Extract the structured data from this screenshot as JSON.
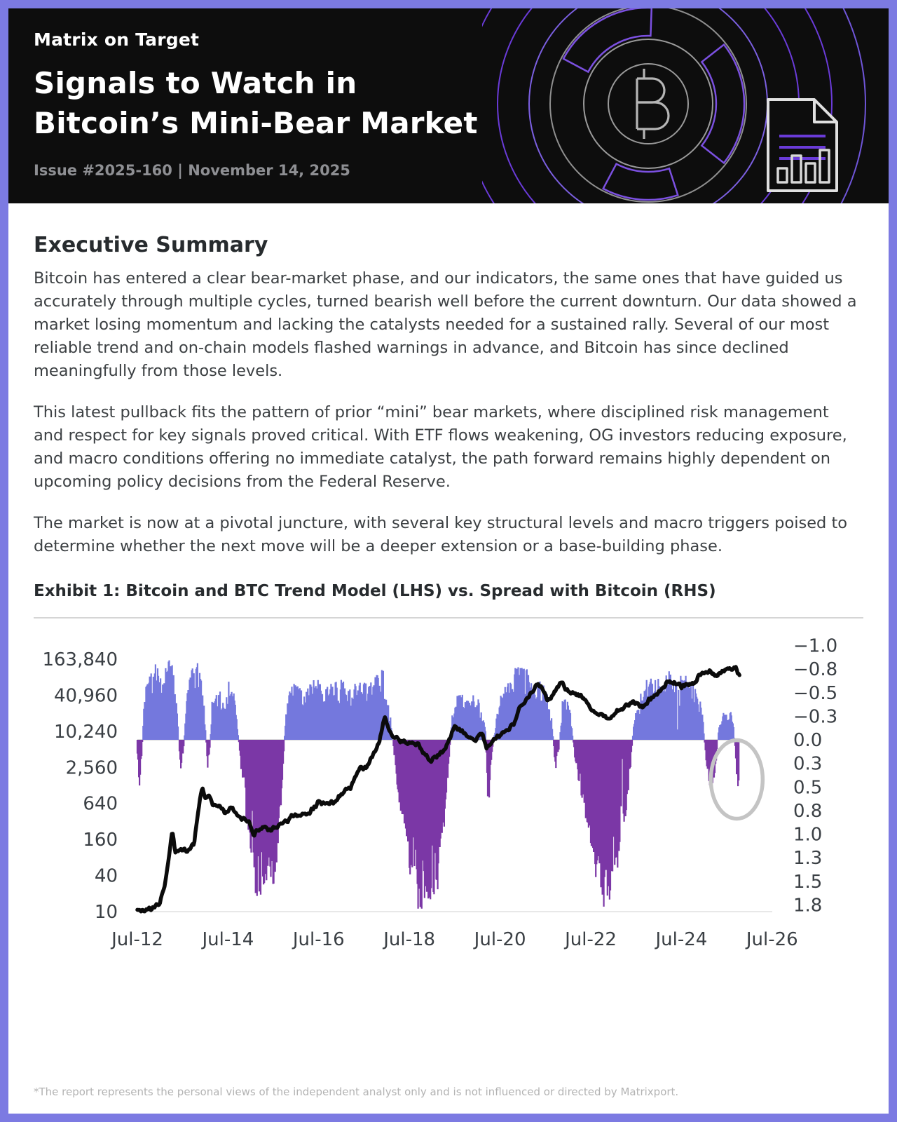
{
  "page": {
    "border_color": "#7c7ae2",
    "background": "#ffffff",
    "header_background": "#0d0d0d"
  },
  "header": {
    "kicker": "Matrix on Target",
    "title_lines": [
      "Signals to Watch in",
      "Bitcoin’s Mini-Bear Market"
    ],
    "issue_line": "Issue #2025-160 | November 14, 2025",
    "icons": [
      "bitcoin-rings-graphic",
      "report-document-icon"
    ]
  },
  "summary": {
    "heading": "Executive Summary",
    "paragraphs": [
      "Bitcoin has entered a clear bear-market phase, and our indicators, the same ones that have guided us accurately through multiple cycles, turned bearish well before the current downturn. Our data showed a market losing momentum and lacking the catalysts needed for a sustained rally. Several of our most reliable trend and on-chain models flashed warnings in advance, and Bitcoin has since declined meaningfully from those levels.",
      "This latest pullback fits the pattern of prior “mini” bear markets, where disciplined risk management and respect for key signals proved critical. With ETF flows weakening, OG investors reducing exposure, and macro conditions offering no immediate catalyst, the path forward remains highly dependent on upcoming policy decisions from the Federal Reserve.",
      "The market is now at a pivotal juncture, with several key structural levels and macro triggers poised to determine whether the next move will be a deeper extension or a base-building phase."
    ]
  },
  "exhibit": {
    "heading": "Exhibit 1: Bitcoin and BTC Trend Model (LHS) vs. Spread with Bitcoin (RHS)"
  },
  "footer": {
    "disclaimer": "*The report represents the personal views of the independent analyst only and is not influenced or directed by Matrixport."
  },
  "chart_data": {
    "type": "combo",
    "title": "Bitcoin and BTC Trend Model (LHS) vs. Spread with Bitcoin (RHS)",
    "grid": false,
    "legend": "none",
    "colors": {
      "btc_line": "#0b0b0b",
      "spread_negative": "#7478dd",
      "spread_positive": "#7b37a6",
      "zero_line": "#d9d9d9",
      "baseline": "#e8e8e8",
      "annotation_circle": "#c4c4c4",
      "tick_text": "#3a3f44"
    },
    "x_axis": {
      "tick_labels": [
        "Jul-12",
        "Jul-14",
        "Jul-16",
        "Jul-18",
        "Jul-20",
        "Jul-22",
        "Jul-24",
        "Jul-26"
      ],
      "start_year": 2012.5,
      "end_year": 2026.5,
      "years_per_tick": 2
    },
    "left_axis": {
      "scale": "log4",
      "min": 10,
      "max": 163840,
      "tick_labels": [
        "163,840",
        "40,960",
        "10,240",
        "2,560",
        "640",
        "160",
        "40",
        "10"
      ]
    },
    "right_axis": {
      "inverted": true,
      "min": -1.0,
      "max": 1.75,
      "step": 0.25,
      "tick_labels": [
        "−1.0",
        "−0.8",
        "−0.5",
        "−0.3",
        "0.0",
        "0.3",
        "0.5",
        "0.8",
        "1.0",
        "1.3",
        "1.5",
        "1.8"
      ]
    },
    "series": [
      {
        "name": "Bitcoin price (LHS, USD, log scale)",
        "type": "line",
        "axis": "left",
        "points": [
          [
            2012.5,
            10.5
          ],
          [
            2012.6,
            11
          ],
          [
            2012.75,
            10.8
          ],
          [
            2012.9,
            12.5
          ],
          [
            2013.0,
            14
          ],
          [
            2013.1,
            25
          ],
          [
            2013.2,
            90
          ],
          [
            2013.27,
            230
          ],
          [
            2013.33,
            95
          ],
          [
            2013.45,
            110
          ],
          [
            2013.6,
            105
          ],
          [
            2013.75,
            140
          ],
          [
            2013.87,
            700
          ],
          [
            2013.93,
            1150
          ],
          [
            2014.0,
            780
          ],
          [
            2014.07,
            920
          ],
          [
            2014.15,
            630
          ],
          [
            2014.3,
            590
          ],
          [
            2014.45,
            450
          ],
          [
            2014.6,
            560
          ],
          [
            2014.75,
            380
          ],
          [
            2014.95,
            330
          ],
          [
            2015.05,
            185
          ],
          [
            2015.15,
            230
          ],
          [
            2015.3,
            255
          ],
          [
            2015.45,
            235
          ],
          [
            2015.6,
            265
          ],
          [
            2015.8,
            320
          ],
          [
            2015.95,
            420
          ],
          [
            2016.1,
            400
          ],
          [
            2016.3,
            450
          ],
          [
            2016.5,
            670
          ],
          [
            2016.7,
            630
          ],
          [
            2016.9,
            720
          ],
          [
            2017.05,
            1050
          ],
          [
            2017.2,
            1200
          ],
          [
            2017.4,
            2400
          ],
          [
            2017.55,
            2600
          ],
          [
            2017.7,
            4300
          ],
          [
            2017.85,
            7200
          ],
          [
            2017.95,
            19000
          ],
          [
            2018.05,
            10500
          ],
          [
            2018.15,
            8500
          ],
          [
            2018.3,
            7000
          ],
          [
            2018.5,
            6500
          ],
          [
            2018.7,
            6300
          ],
          [
            2018.85,
            4000
          ],
          [
            2018.95,
            3300
          ],
          [
            2019.1,
            3800
          ],
          [
            2019.3,
            5300
          ],
          [
            2019.5,
            12800
          ],
          [
            2019.65,
            10200
          ],
          [
            2019.8,
            8300
          ],
          [
            2019.95,
            7200
          ],
          [
            2020.1,
            9200
          ],
          [
            2020.2,
            5500
          ],
          [
            2020.35,
            7000
          ],
          [
            2020.5,
            9200
          ],
          [
            2020.65,
            11000
          ],
          [
            2020.8,
            13500
          ],
          [
            2020.95,
            27000
          ],
          [
            2021.1,
            36000
          ],
          [
            2021.3,
            61000
          ],
          [
            2021.45,
            51000
          ],
          [
            2021.55,
            32000
          ],
          [
            2021.7,
            46000
          ],
          [
            2021.85,
            66000
          ],
          [
            2022.0,
            47000
          ],
          [
            2022.15,
            42000
          ],
          [
            2022.3,
            39000
          ],
          [
            2022.45,
            29000
          ],
          [
            2022.6,
            20500
          ],
          [
            2022.75,
            19500
          ],
          [
            2022.9,
            16200
          ],
          [
            2023.05,
            21000
          ],
          [
            2023.2,
            25000
          ],
          [
            2023.35,
            29500
          ],
          [
            2023.5,
            30200
          ],
          [
            2023.65,
            26500
          ],
          [
            2023.8,
            34500
          ],
          [
            2023.95,
            42000
          ],
          [
            2024.1,
            52000
          ],
          [
            2024.2,
            68000
          ],
          [
            2024.35,
            64000
          ],
          [
            2024.5,
            58000
          ],
          [
            2024.65,
            61000
          ],
          [
            2024.8,
            66000
          ],
          [
            2024.95,
            99000
          ],
          [
            2025.05,
            104000
          ],
          [
            2025.15,
            97000
          ],
          [
            2025.25,
            82000
          ],
          [
            2025.35,
            95000
          ],
          [
            2025.45,
            108000
          ],
          [
            2025.55,
            117000
          ],
          [
            2025.62,
            112000
          ],
          [
            2025.7,
            119000
          ],
          [
            2025.78,
            84000
          ]
        ]
      },
      {
        "name": "Spread with Bitcoin (RHS)",
        "type": "spike-area",
        "axis": "right",
        "points": [
          [
            2012.5,
            0.15
          ],
          [
            2012.54,
            0.6
          ],
          [
            2012.6,
            0.2
          ],
          [
            2012.65,
            -0.5
          ],
          [
            2012.75,
            -0.7
          ],
          [
            2012.9,
            -0.8
          ],
          [
            2013.05,
            -0.6
          ],
          [
            2013.2,
            -0.85
          ],
          [
            2013.3,
            -0.7
          ],
          [
            2013.38,
            -0.3
          ],
          [
            2013.45,
            0.35
          ],
          [
            2013.52,
            0.1
          ],
          [
            2013.6,
            -0.5
          ],
          [
            2013.7,
            -0.8
          ],
          [
            2013.85,
            -0.85
          ],
          [
            2013.95,
            -0.55
          ],
          [
            2014.0,
            -0.15
          ],
          [
            2014.05,
            0.3
          ],
          [
            2014.1,
            0.1
          ],
          [
            2014.15,
            -0.45
          ],
          [
            2014.3,
            -0.5
          ],
          [
            2014.45,
            -0.4
          ],
          [
            2014.55,
            -0.75
          ],
          [
            2014.65,
            -0.45
          ],
          [
            2014.72,
            -0.1
          ],
          [
            2014.8,
            0.4
          ],
          [
            2014.9,
            0.8
          ],
          [
            2015.0,
            1.2
          ],
          [
            2015.1,
            1.75
          ],
          [
            2015.3,
            1.8
          ],
          [
            2015.5,
            1.7
          ],
          [
            2015.62,
            1.1
          ],
          [
            2015.7,
            0.5
          ],
          [
            2015.76,
            -0.2
          ],
          [
            2015.85,
            -0.55
          ],
          [
            2016.0,
            -0.6
          ],
          [
            2016.2,
            -0.5
          ],
          [
            2016.4,
            -0.65
          ],
          [
            2016.6,
            -0.55
          ],
          [
            2016.8,
            -0.6
          ],
          [
            2017.0,
            -0.65
          ],
          [
            2017.2,
            -0.55
          ],
          [
            2017.4,
            -0.65
          ],
          [
            2017.6,
            -0.6
          ],
          [
            2017.8,
            -0.7
          ],
          [
            2017.9,
            -0.85
          ],
          [
            2018.0,
            -0.5
          ],
          [
            2018.1,
            -0.2
          ],
          [
            2018.2,
            0.4
          ],
          [
            2018.35,
            0.9
          ],
          [
            2018.5,
            1.4
          ],
          [
            2018.7,
            1.8
          ],
          [
            2018.9,
            1.75
          ],
          [
            2019.1,
            1.6
          ],
          [
            2019.25,
            1.0
          ],
          [
            2019.35,
            0.4
          ],
          [
            2019.45,
            -0.3
          ],
          [
            2019.6,
            -0.5
          ],
          [
            2019.8,
            -0.45
          ],
          [
            2019.95,
            -0.55
          ],
          [
            2020.1,
            -0.3
          ],
          [
            2020.18,
            -0.1
          ],
          [
            2020.23,
            0.8
          ],
          [
            2020.3,
            0.3
          ],
          [
            2020.4,
            -0.2
          ],
          [
            2020.5,
            -0.45
          ],
          [
            2020.65,
            -0.6
          ],
          [
            2020.8,
            -0.7
          ],
          [
            2020.95,
            -0.85
          ],
          [
            2021.1,
            -0.7
          ],
          [
            2021.25,
            -0.55
          ],
          [
            2021.4,
            -0.65
          ],
          [
            2021.55,
            -0.5
          ],
          [
            2021.65,
            -0.2
          ],
          [
            2021.72,
            0.35
          ],
          [
            2021.8,
            0.1
          ],
          [
            2021.88,
            -0.45
          ],
          [
            2021.95,
            -0.5
          ],
          [
            2022.05,
            -0.3
          ],
          [
            2022.15,
            0.2
          ],
          [
            2022.3,
            0.6
          ],
          [
            2022.45,
            1.0
          ],
          [
            2022.6,
            1.5
          ],
          [
            2022.75,
            1.8
          ],
          [
            2022.9,
            1.75
          ],
          [
            2023.05,
            1.4
          ],
          [
            2023.2,
            1.1
          ],
          [
            2023.35,
            0.5
          ],
          [
            2023.45,
            -0.2
          ],
          [
            2023.6,
            -0.5
          ],
          [
            2023.8,
            -0.65
          ],
          [
            2024.0,
            -0.7
          ],
          [
            2024.2,
            -0.75
          ],
          [
            2024.4,
            -0.6
          ],
          [
            2024.6,
            -0.7
          ],
          [
            2024.8,
            -0.55
          ],
          [
            2024.95,
            -0.4
          ],
          [
            2025.05,
            0.3
          ],
          [
            2025.15,
            0.55
          ],
          [
            2025.25,
            0.35
          ],
          [
            2025.32,
            -0.15
          ],
          [
            2025.4,
            -0.3
          ],
          [
            2025.5,
            -0.25
          ],
          [
            2025.58,
            -0.35
          ],
          [
            2025.65,
            -0.15
          ],
          [
            2025.7,
            0.2
          ],
          [
            2025.74,
            0.65
          ],
          [
            2025.78,
            0.3
          ]
        ]
      }
    ],
    "annotation": {
      "shape": "ellipse",
      "x": 2025.72,
      "value": 0.42,
      "meaning": "circle highlighting latest spread dip"
    }
  }
}
